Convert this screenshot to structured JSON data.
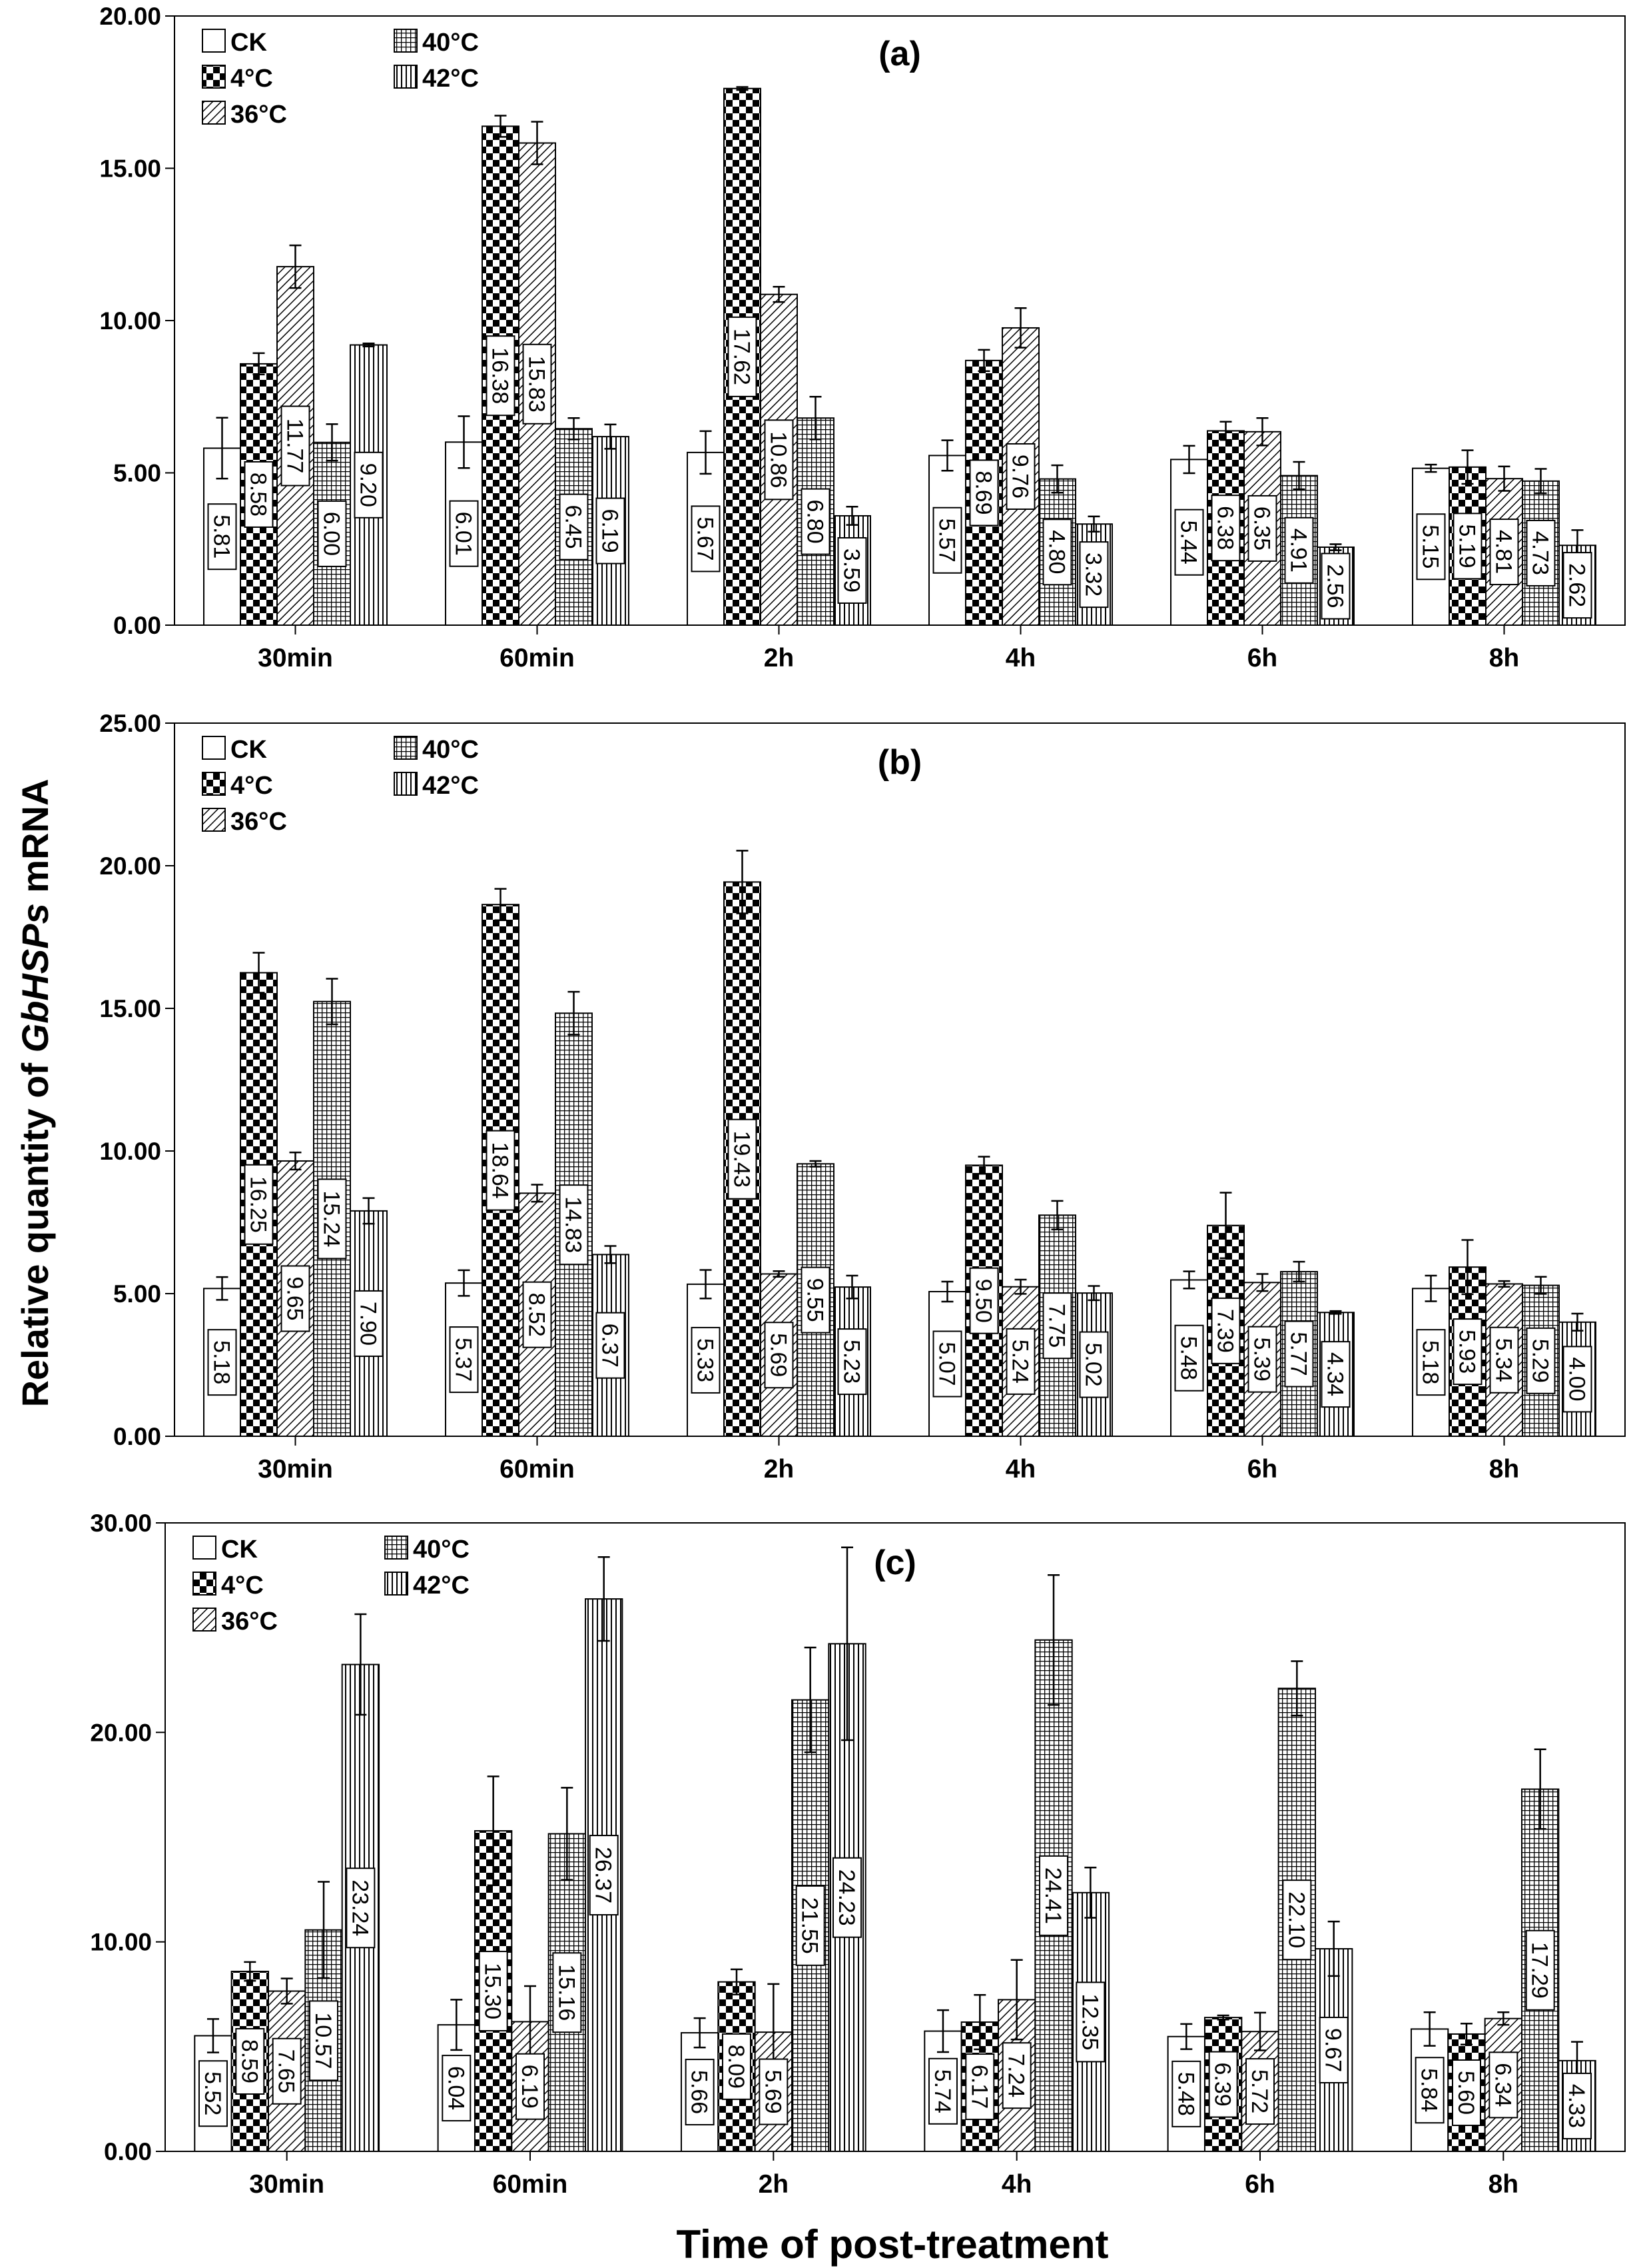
{
  "figure": {
    "ylabel_prefix": "Relative quantity of ",
    "ylabel_italic": "GbHSPs",
    "ylabel_suffix": " mRNA",
    "xlabel": "Time of post-treatment"
  },
  "chart_data": [
    {
      "type": "bar",
      "title": "(a)",
      "categories": [
        "30min",
        "60min",
        "2h",
        "4h",
        "6h",
        "8h"
      ],
      "ylim": [
        0,
        20
      ],
      "yticks": [
        "0.00",
        "5.00",
        "10.00",
        "15.00",
        "20.00"
      ],
      "grid": false,
      "legend_placement": "top-left",
      "series": [
        {
          "name": "CK",
          "pattern": "plain",
          "values": [
            5.81,
            6.01,
            5.67,
            5.57,
            5.44,
            5.15
          ],
          "labels": [
            "5.81",
            "6.01",
            "5.67",
            "5.57",
            "5.44",
            "5.15"
          ],
          "errors": [
            1.0,
            0.85,
            0.7,
            0.5,
            0.45,
            0.12
          ]
        },
        {
          "name": "4°C",
          "pattern": "checker",
          "values": [
            8.58,
            16.38,
            17.62,
            8.69,
            6.38,
            5.19
          ],
          "labels": [
            "8.58",
            "16.38",
            "17.62",
            "8.69",
            "6.38",
            "5.19"
          ],
          "errors": [
            0.35,
            0.35,
            0.05,
            0.35,
            0.3,
            0.55
          ]
        },
        {
          "name": "36°C",
          "pattern": "diagonal",
          "values": [
            11.77,
            15.83,
            10.86,
            9.76,
            6.35,
            4.81
          ],
          "labels": [
            "11.77",
            "15.83",
            "10.86",
            "9.76",
            "6.35",
            "4.81"
          ],
          "errors": [
            0.7,
            0.7,
            0.25,
            0.65,
            0.45,
            0.4
          ]
        },
        {
          "name": "40°C",
          "pattern": "grid",
          "values": [
            6.0,
            6.45,
            6.8,
            4.8,
            4.91,
            4.73
          ],
          "labels": [
            "6.00",
            "6.45",
            "6.80",
            "4.80",
            "4.91",
            "4.73"
          ],
          "errors": [
            0.6,
            0.35,
            0.7,
            0.45,
            0.45,
            0.4
          ]
        },
        {
          "name": "42°C",
          "pattern": "vertical",
          "values": [
            9.2,
            6.19,
            3.59,
            3.32,
            2.56,
            2.62
          ],
          "labels": [
            "9.20",
            "6.19",
            "3.59",
            "3.32",
            "2.56",
            "2.62"
          ],
          "errors": [
            0.05,
            0.4,
            0.3,
            0.25,
            0.1,
            0.5
          ]
        }
      ]
    },
    {
      "type": "bar",
      "title": "(b)",
      "categories": [
        "30min",
        "60min",
        "2h",
        "4h",
        "6h",
        "8h"
      ],
      "ylim": [
        0,
        25
      ],
      "yticks": [
        "0.00",
        "5.00",
        "10.00",
        "15.00",
        "20.00",
        "25.00"
      ],
      "grid": false,
      "legend_placement": "top-left",
      "series": [
        {
          "name": "CK",
          "pattern": "plain",
          "values": [
            5.18,
            5.37,
            5.33,
            5.07,
            5.48,
            5.18
          ],
          "labels": [
            "5.18",
            "5.37",
            "5.33",
            "5.07",
            "5.48",
            "5.18"
          ],
          "errors": [
            0.4,
            0.45,
            0.5,
            0.35,
            0.3,
            0.45
          ]
        },
        {
          "name": "4°C",
          "pattern": "checker",
          "values": [
            16.25,
            18.64,
            19.43,
            9.5,
            7.39,
            5.93
          ],
          "labels": [
            "16.25",
            "18.64",
            "19.43",
            "9.50",
            "7.39",
            "5.93"
          ],
          "errors": [
            0.7,
            0.55,
            1.1,
            0.3,
            1.15,
            0.95
          ]
        },
        {
          "name": "36°C",
          "pattern": "diagonal",
          "values": [
            9.65,
            8.52,
            5.69,
            5.24,
            5.39,
            5.34
          ],
          "labels": [
            "9.65",
            "8.52",
            "5.69",
            "5.24",
            "5.39",
            "5.34"
          ],
          "errors": [
            0.3,
            0.3,
            0.1,
            0.25,
            0.3,
            0.1
          ]
        },
        {
          "name": "40°C",
          "pattern": "grid",
          "values": [
            15.24,
            14.83,
            9.55,
            7.75,
            5.77,
            5.29
          ],
          "labels": [
            "15.24",
            "14.83",
            "9.55",
            "7.75",
            "5.77",
            "5.29"
          ],
          "errors": [
            0.8,
            0.75,
            0.1,
            0.5,
            0.35,
            0.3
          ]
        },
        {
          "name": "42°C",
          "pattern": "vertical",
          "values": [
            7.9,
            6.37,
            5.23,
            5.02,
            4.34,
            4.0
          ],
          "labels": [
            "7.90",
            "6.37",
            "5.23",
            "5.02",
            "4.34",
            "4.00"
          ],
          "errors": [
            0.45,
            0.3,
            0.4,
            0.25,
            0.05,
            0.3
          ]
        }
      ]
    },
    {
      "type": "bar",
      "title": "(c)",
      "categories": [
        "30min",
        "60min",
        "2h",
        "4h",
        "6h",
        "8h"
      ],
      "ylim": [
        0,
        30
      ],
      "yticks": [
        "0.00",
        "10.00",
        "20.00",
        "30.00"
      ],
      "grid": false,
      "legend_placement": "top-left",
      "series": [
        {
          "name": "CK",
          "pattern": "plain",
          "values": [
            5.52,
            6.04,
            5.66,
            5.74,
            5.48,
            5.84
          ],
          "labels": [
            "5.52",
            "6.04",
            "5.66",
            "5.74",
            "5.48",
            "5.84"
          ],
          "errors": [
            0.8,
            1.2,
            0.7,
            1.0,
            0.6,
            0.8
          ]
        },
        {
          "name": "4°C",
          "pattern": "checker",
          "values": [
            8.59,
            15.3,
            8.09,
            6.17,
            6.39,
            5.6
          ],
          "labels": [
            "8.59",
            "15.30",
            "8.09",
            "6.17",
            "6.39",
            "5.60"
          ],
          "errors": [
            0.45,
            2.6,
            0.6,
            1.3,
            0.1,
            0.5
          ]
        },
        {
          "name": "36°C",
          "pattern": "diagonal",
          "values": [
            7.65,
            6.19,
            5.69,
            7.24,
            5.72,
            6.34
          ],
          "labels": [
            "7.65",
            "6.19",
            "5.69",
            "7.24",
            "5.72",
            "6.34"
          ],
          "errors": [
            0.6,
            1.7,
            2.3,
            1.9,
            0.9,
            0.3
          ]
        },
        {
          "name": "40°C",
          "pattern": "grid",
          "values": [
            10.57,
            15.16,
            21.55,
            24.41,
            22.1,
            17.29
          ],
          "labels": [
            "10.57",
            "15.16",
            "21.55",
            "24.41",
            "22.10",
            "17.29"
          ],
          "errors": [
            2.3,
            2.2,
            2.5,
            3.1,
            1.3,
            1.9
          ]
        },
        {
          "name": "42°C",
          "pattern": "vertical",
          "values": [
            23.24,
            26.37,
            24.23,
            12.35,
            9.67,
            4.33
          ],
          "labels": [
            "23.24",
            "26.37",
            "24.23",
            "12.35",
            "9.67",
            "4.33"
          ],
          "errors": [
            2.4,
            2.0,
            4.6,
            1.2,
            1.3,
            0.9
          ]
        }
      ]
    }
  ]
}
